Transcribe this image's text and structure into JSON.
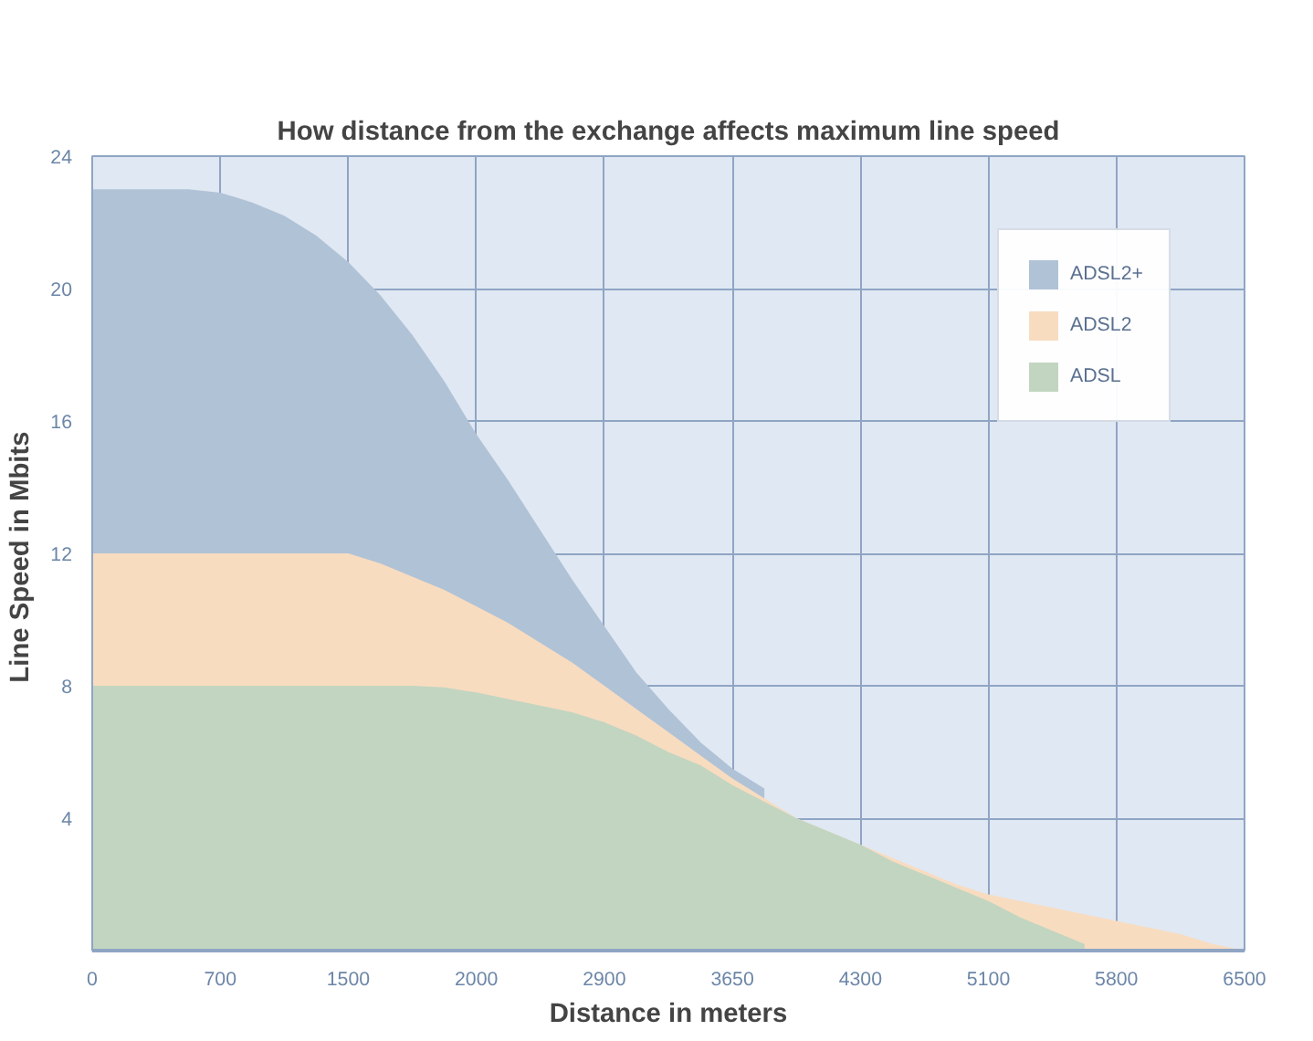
{
  "chart_data": {
    "type": "area",
    "title": "How distance from the exchange affects maximum line speed",
    "xlabel": "Distance in meters",
    "ylabel": "Line Speed  in Mbits",
    "categories": [
      "0",
      null,
      null,
      null,
      "700",
      null,
      null,
      null,
      "1500",
      null,
      null,
      null,
      "2000",
      null,
      null,
      null,
      "2900",
      null,
      null,
      null,
      "3650",
      null,
      null,
      null,
      "4300",
      null,
      null,
      null,
      "5100",
      null,
      null,
      null,
      "5800",
      null,
      null,
      null,
      "6500"
    ],
    "series": [
      {
        "name": "ADSL2+",
        "color": "#b0c2d6",
        "values": [
          23,
          23,
          23,
          23,
          22.9,
          22.6,
          22.2,
          21.6,
          20.8,
          19.8,
          18.6,
          17.2,
          15.6,
          14.2,
          12.7,
          11.2,
          9.8,
          8.4,
          7.3,
          6.3,
          5.5,
          4.9,
          null,
          null,
          null,
          null,
          null,
          null,
          null,
          null,
          null,
          null,
          null,
          null,
          null,
          null,
          null
        ]
      },
      {
        "name": "ADSL2",
        "color": "#f8dcc0",
        "values": [
          12,
          12,
          12,
          12,
          12,
          12,
          12,
          12,
          12,
          11.7,
          11.3,
          10.9,
          10.4,
          9.9,
          9.3,
          8.7,
          8.0,
          7.3,
          6.6,
          5.9,
          5.2,
          4.6,
          4.0,
          3.6,
          3.2,
          2.8,
          2.4,
          2.0,
          1.7,
          1.5,
          1.3,
          1.1,
          0.9,
          0.7,
          0.5,
          0.2,
          0
        ]
      },
      {
        "name": "ADSL",
        "color": "#c2d5c0",
        "values": [
          8,
          8,
          8,
          8,
          8,
          8,
          8,
          8,
          8,
          8,
          8,
          7.95,
          7.8,
          7.6,
          7.4,
          7.2,
          6.9,
          6.5,
          6.0,
          5.6,
          5.0,
          4.5,
          4.0,
          3.6,
          3.2,
          2.7,
          2.3,
          1.9,
          1.5,
          1.0,
          0.6,
          0.2,
          null,
          null,
          null,
          null,
          null
        ]
      }
    ],
    "ylim": [
      0,
      24
    ],
    "yticks": [
      {
        "value": 0,
        "label": null
      },
      4,
      8,
      12,
      16,
      20,
      24
    ],
    "grid": true,
    "legend": "top right"
  }
}
